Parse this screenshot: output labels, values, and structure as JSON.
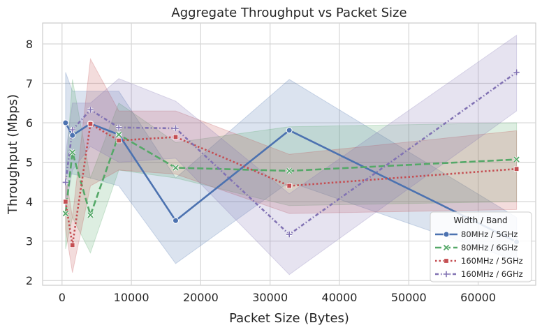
{
  "chart_data": {
    "type": "line",
    "title": "Aggregate Throughput vs Packet Size",
    "xlabel": "Packet Size (Bytes)",
    "ylabel": "Throughput (Mbps)",
    "xlim": [
      -2800,
      68300
    ],
    "ylim": [
      1.88,
      8.53
    ],
    "xticks": [
      0,
      10000,
      20000,
      30000,
      40000,
      50000,
      60000
    ],
    "yticks": [
      2,
      3,
      4,
      5,
      6,
      7,
      8
    ],
    "grid": true,
    "legend": {
      "title": "Width / Band",
      "placement": "lower-right"
    },
    "x": [
      512,
      1500,
      4096,
      8192,
      16384,
      32768,
      65536
    ],
    "series": [
      {
        "name": "80MHz / 5GHz",
        "color": "#4c72b0",
        "dash": "solid",
        "marker": "circle",
        "values": [
          6.0,
          5.68,
          5.98,
          5.7,
          3.52,
          5.81,
          2.98
        ],
        "ci_low": [
          4.7,
          4.7,
          4.6,
          4.4,
          2.43,
          4.5,
          2.5
        ],
        "ci_high": [
          7.28,
          6.8,
          6.8,
          6.8,
          4.6,
          7.1,
          3.6
        ]
      },
      {
        "name": "80MHz / 6GHz",
        "color": "#55a868",
        "dash": "dashed",
        "marker": "x",
        "values": [
          3.7,
          5.25,
          3.66,
          5.7,
          4.86,
          4.78,
          5.07
        ],
        "ci_low": [
          2.8,
          3.6,
          2.7,
          4.8,
          4.6,
          3.9,
          4.0
        ],
        "ci_high": [
          4.6,
          7.1,
          4.6,
          6.5,
          5.5,
          5.9,
          6.0
        ]
      },
      {
        "name": "160MHz / 5GHz",
        "color": "#c44e52",
        "dash": "dotted",
        "marker": "square",
        "values": [
          4.0,
          2.9,
          5.97,
          5.55,
          5.64,
          4.4,
          4.83
        ],
        "ci_low": [
          3.3,
          2.2,
          4.4,
          4.8,
          4.7,
          3.7,
          3.8
        ],
        "ci_high": [
          4.7,
          3.6,
          7.62,
          6.3,
          6.3,
          5.2,
          5.8
        ]
      },
      {
        "name": "160MHz / 6GHz",
        "color": "#8172b3",
        "dash": "dashdot",
        "marker": "plus",
        "values": [
          4.49,
          5.82,
          6.33,
          5.88,
          5.86,
          3.17,
          7.28
        ],
        "ci_low": [
          3.8,
          4.8,
          5.4,
          5.0,
          5.1,
          2.15,
          6.3
        ],
        "ci_high": [
          5.2,
          6.5,
          6.5,
          7.12,
          6.55,
          4.2,
          8.22
        ]
      }
    ]
  }
}
